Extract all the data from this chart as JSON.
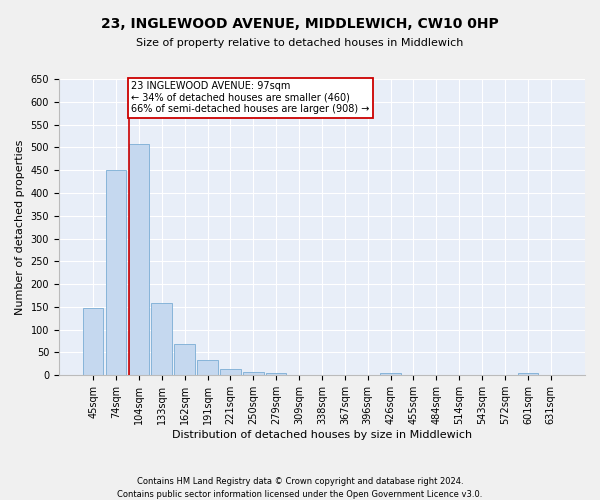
{
  "title": "23, INGLEWOOD AVENUE, MIDDLEWICH, CW10 0HP",
  "subtitle": "Size of property relative to detached houses in Middlewich",
  "xlabel": "Distribution of detached houses by size in Middlewich",
  "ylabel": "Number of detached properties",
  "footnote1": "Contains HM Land Registry data © Crown copyright and database right 2024.",
  "footnote2": "Contains public sector information licensed under the Open Government Licence v3.0.",
  "bar_labels": [
    "45sqm",
    "74sqm",
    "104sqm",
    "133sqm",
    "162sqm",
    "191sqm",
    "221sqm",
    "250sqm",
    "279sqm",
    "309sqm",
    "338sqm",
    "367sqm",
    "396sqm",
    "426sqm",
    "455sqm",
    "484sqm",
    "514sqm",
    "543sqm",
    "572sqm",
    "601sqm",
    "631sqm"
  ],
  "bar_values": [
    148,
    450,
    508,
    158,
    68,
    33,
    13,
    8,
    5,
    0,
    0,
    0,
    0,
    5,
    0,
    0,
    0,
    0,
    0,
    5,
    0
  ],
  "bar_color": "#c5d8ef",
  "bar_edge_color": "#7aadd4",
  "fig_facecolor": "#f0f0f0",
  "ax_facecolor": "#e8eef8",
  "grid_color": "#ffffff",
  "redline_color": "#cc0000",
  "annotation_line1": "23 INGLEWOOD AVENUE: 97sqm",
  "annotation_line2": "← 34% of detached houses are smaller (460)",
  "annotation_line3": "66% of semi-detached houses are larger (908) →",
  "annotation_box_facecolor": "#ffffff",
  "annotation_box_edgecolor": "#cc0000",
  "ylim": [
    0,
    650
  ],
  "yticks": [
    0,
    50,
    100,
    150,
    200,
    250,
    300,
    350,
    400,
    450,
    500,
    550,
    600,
    650
  ],
  "title_fontsize": 10,
  "subtitle_fontsize": 8,
  "ylabel_fontsize": 8,
  "xlabel_fontsize": 8,
  "tick_fontsize": 7,
  "footnote_fontsize": 6
}
